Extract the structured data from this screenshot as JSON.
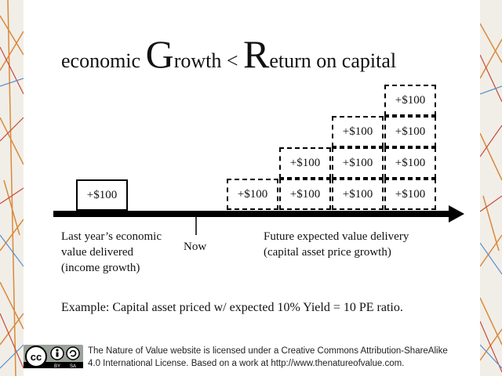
{
  "title": {
    "part1": "economic ",
    "part2": "G",
    "part3": "rowth < ",
    "part4": "R",
    "part5": "eturn on capital"
  },
  "past_box": {
    "label": "+$100"
  },
  "future_columns": [
    [
      "+$100"
    ],
    [
      "+$100",
      "+$100"
    ],
    [
      "+$100",
      "+$100",
      "+$100"
    ],
    [
      "+$100",
      "+$100",
      "+$100",
      "+$100"
    ]
  ],
  "labels": {
    "past_line1": "Last year’s economic",
    "past_line2": "value delivered",
    "past_line3": "(income growth)",
    "now": "Now",
    "future_line1": "Future expected value delivery",
    "future_line2": "(capital asset price growth)"
  },
  "example": "Example: Capital asset priced w/ expected 10% Yield = 10 PE ratio.",
  "footer": {
    "line1": "The Nature of Value website is licensed under a Creative Commons Attribution-ShareAlike",
    "line2": "4.0 International License.  Based on a work at http://www.thenatureofvalue.com."
  },
  "license_badge": {
    "cc": "cc",
    "by": "BY",
    "sa": "SA"
  },
  "colors": {
    "ink": "#000000",
    "badge_bg": "#9aa39a"
  }
}
